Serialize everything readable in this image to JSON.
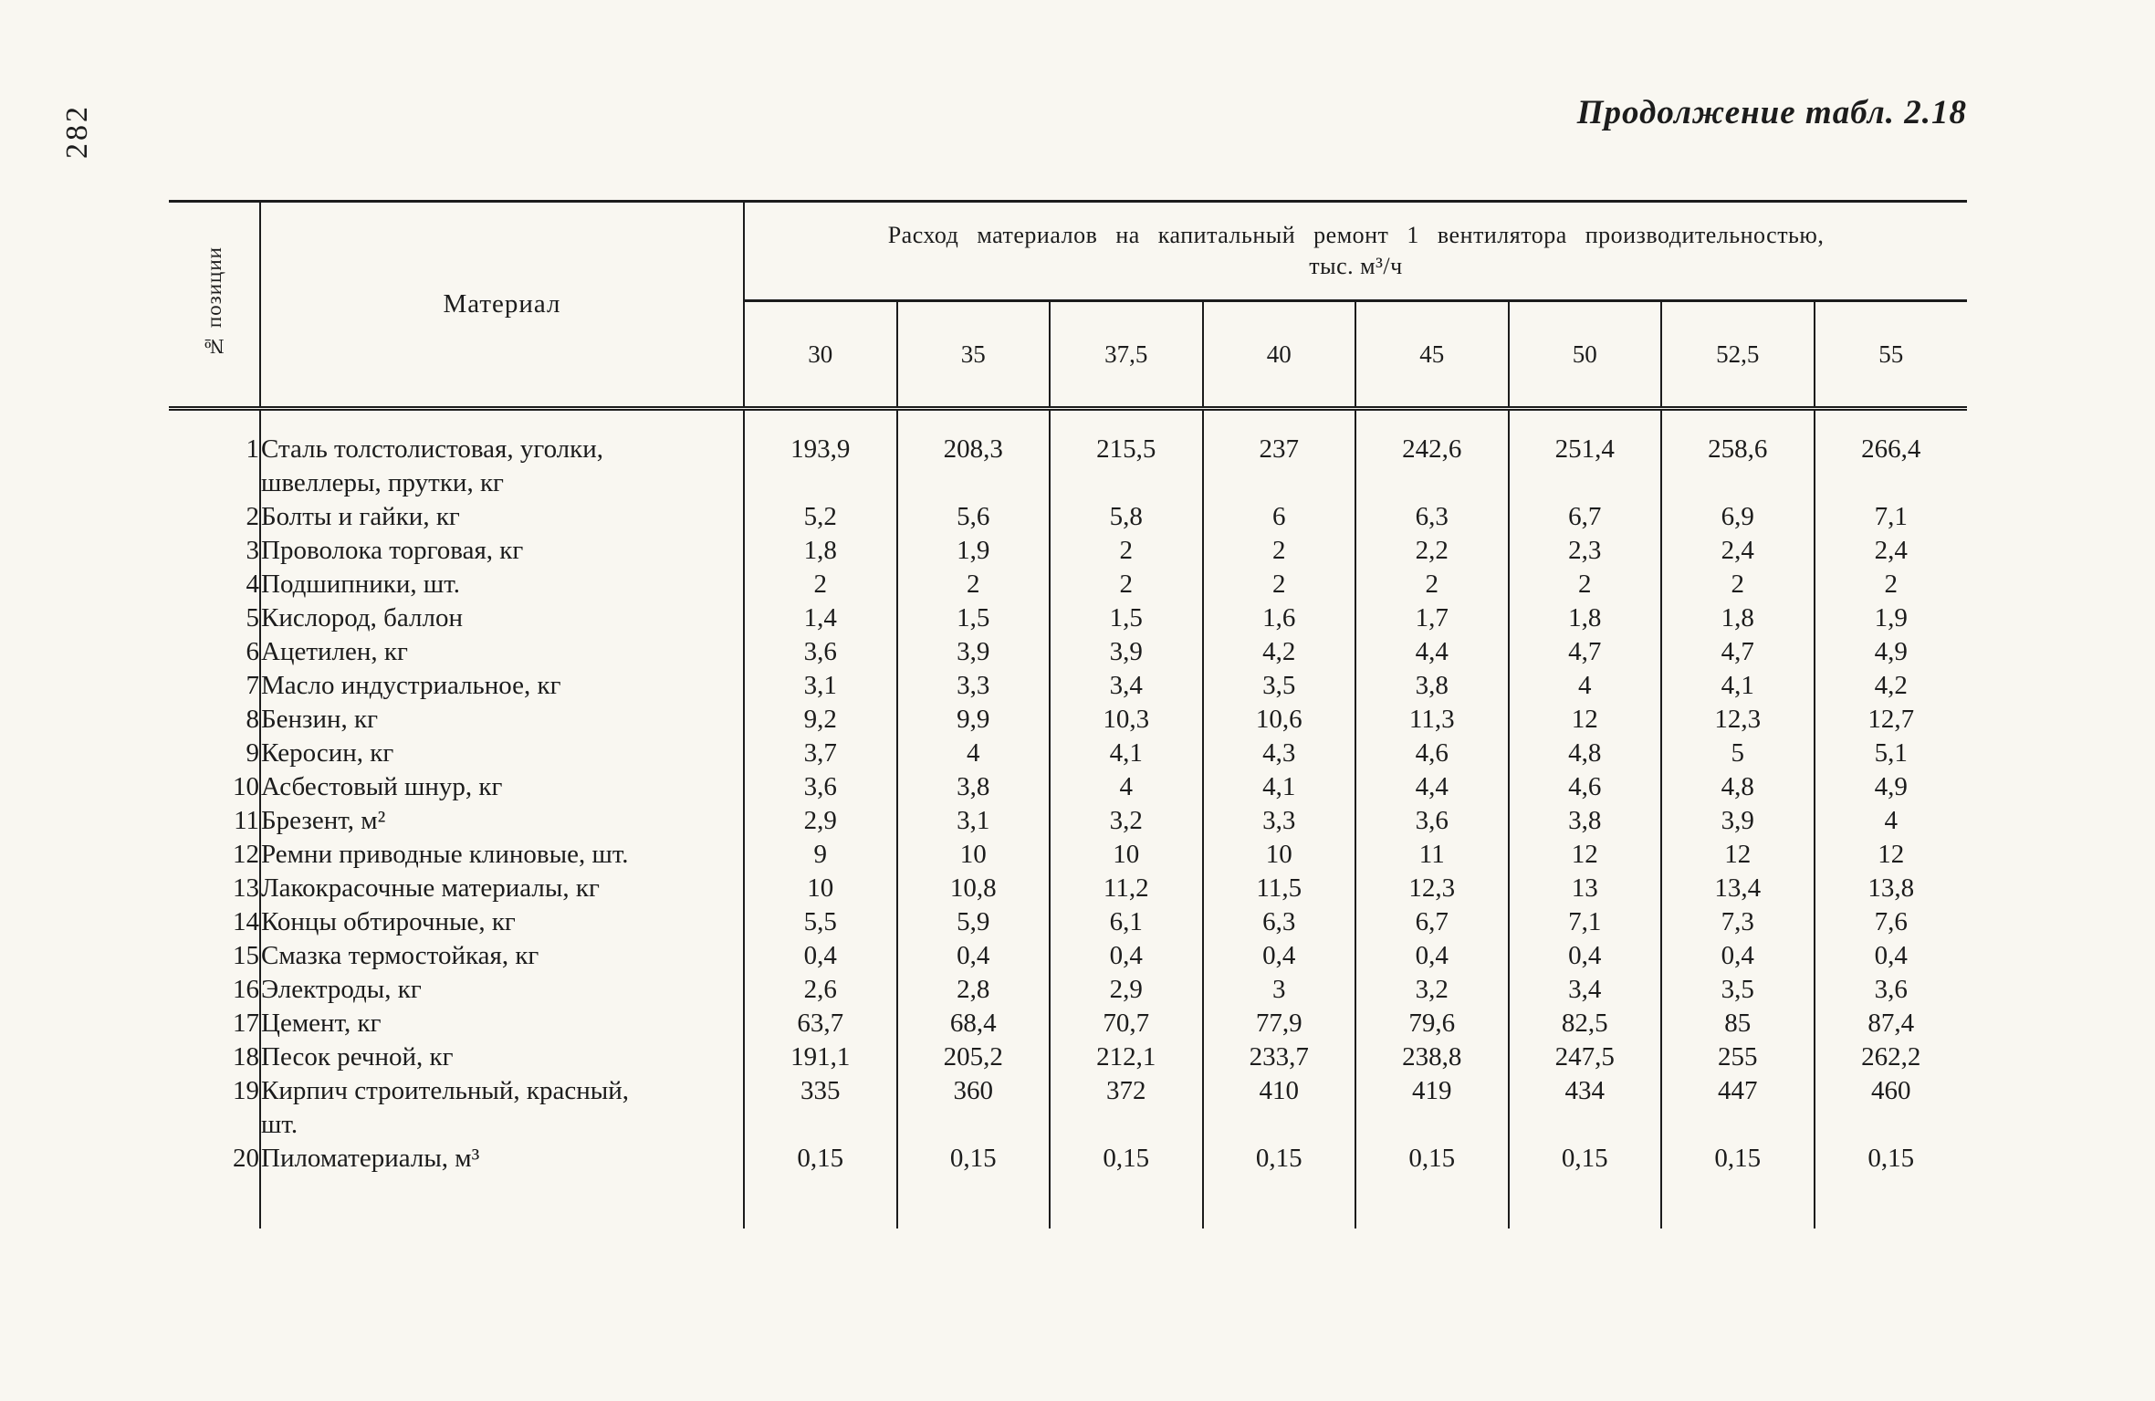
{
  "page": {
    "number": "282",
    "title": "Продолжение табл. 2.18"
  },
  "table": {
    "position_col_header": "№ позиции",
    "material_col_header": "Материал",
    "span_header_line1": "Расход материалов на капитальный ремонт 1 вентилятора производительностью,",
    "span_header_line2": "тыс. м³/ч",
    "capacity_headers": [
      "30",
      "35",
      "37,5",
      "40",
      "45",
      "50",
      "52,5",
      "55"
    ],
    "rows": [
      {
        "num": "1",
        "material": "Сталь толстолистовая, уголки,\nшвеллеры, прутки, кг",
        "values": [
          "193,9",
          "208,3",
          "215,5",
          "237",
          "242,6",
          "251,4",
          "258,6",
          "266,4"
        ]
      },
      {
        "num": "2",
        "material": "Болты и гайки, кг",
        "values": [
          "5,2",
          "5,6",
          "5,8",
          "6",
          "6,3",
          "6,7",
          "6,9",
          "7,1"
        ]
      },
      {
        "num": "3",
        "material": "Проволока торговая, кг",
        "values": [
          "1,8",
          "1,9",
          "2",
          "2",
          "2,2",
          "2,3",
          "2,4",
          "2,4"
        ]
      },
      {
        "num": "4",
        "material": "Подшипники, шт.",
        "values": [
          "2",
          "2",
          "2",
          "2",
          "2",
          "2",
          "2",
          "2"
        ]
      },
      {
        "num": "5",
        "material": "Кислород, баллон",
        "values": [
          "1,4",
          "1,5",
          "1,5",
          "1,6",
          "1,7",
          "1,8",
          "1,8",
          "1,9"
        ]
      },
      {
        "num": "6",
        "material": "Ацетилен, кг",
        "values": [
          "3,6",
          "3,9",
          "3,9",
          "4,2",
          "4,4",
          "4,7",
          "4,7",
          "4,9"
        ]
      },
      {
        "num": "7",
        "material": "Масло индустриальное, кг",
        "values": [
          "3,1",
          "3,3",
          "3,4",
          "3,5",
          "3,8",
          "4",
          "4,1",
          "4,2"
        ]
      },
      {
        "num": "8",
        "material": "Бензин, кг",
        "values": [
          "9,2",
          "9,9",
          "10,3",
          "10,6",
          "11,3",
          "12",
          "12,3",
          "12,7"
        ]
      },
      {
        "num": "9",
        "material": "Керосин, кг",
        "values": [
          "3,7",
          "4",
          "4,1",
          "4,3",
          "4,6",
          "4,8",
          "5",
          "5,1"
        ]
      },
      {
        "num": "10",
        "material": "Асбестовый шнур, кг",
        "values": [
          "3,6",
          "3,8",
          "4",
          "4,1",
          "4,4",
          "4,6",
          "4,8",
          "4,9"
        ]
      },
      {
        "num": "11",
        "material": "Брезент, м²",
        "values": [
          "2,9",
          "3,1",
          "3,2",
          "3,3",
          "3,6",
          "3,8",
          "3,9",
          "4"
        ]
      },
      {
        "num": "12",
        "material": "Ремни приводные клиновые, шт.",
        "values": [
          "9",
          "10",
          "10",
          "10",
          "11",
          "12",
          "12",
          "12"
        ]
      },
      {
        "num": "13",
        "material": "Лакокрасочные материалы, кг",
        "values": [
          "10",
          "10,8",
          "11,2",
          "11,5",
          "12,3",
          "13",
          "13,4",
          "13,8"
        ]
      },
      {
        "num": "14",
        "material": "Концы обтирочные, кг",
        "values": [
          "5,5",
          "5,9",
          "6,1",
          "6,3",
          "6,7",
          "7,1",
          "7,3",
          "7,6"
        ]
      },
      {
        "num": "15",
        "material": "Смазка термостойкая, кг",
        "values": [
          "0,4",
          "0,4",
          "0,4",
          "0,4",
          "0,4",
          "0,4",
          "0,4",
          "0,4"
        ]
      },
      {
        "num": "16",
        "material": "Электроды, кг",
        "values": [
          "2,6",
          "2,8",
          "2,9",
          "3",
          "3,2",
          "3,4",
          "3,5",
          "3,6"
        ]
      },
      {
        "num": "17",
        "material": "Цемент, кг",
        "values": [
          "63,7",
          "68,4",
          "70,7",
          "77,9",
          "79,6",
          "82,5",
          "85",
          "87,4"
        ]
      },
      {
        "num": "18",
        "material": "Песок речной, кг",
        "values": [
          "191,1",
          "205,2",
          "212,1",
          "233,7",
          "238,8",
          "247,5",
          "255",
          "262,2"
        ]
      },
      {
        "num": "19",
        "material": "Кирпич строительный, красный,\nшт.",
        "values": [
          "335",
          "360",
          "372",
          "410",
          "419",
          "434",
          "447",
          "460"
        ]
      },
      {
        "num": "20",
        "material": "Пиломатериалы, м³",
        "values": [
          "0,15",
          "0,15",
          "0,15",
          "0,15",
          "0,15",
          "0,15",
          "0,15",
          "0,15"
        ]
      }
    ]
  }
}
